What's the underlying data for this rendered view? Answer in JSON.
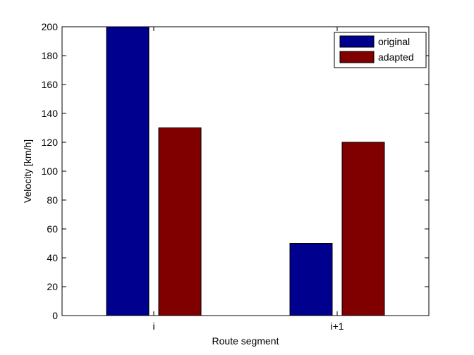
{
  "chart_data": {
    "type": "bar",
    "categories": [
      "i",
      "i+1"
    ],
    "series": [
      {
        "name": "original",
        "values": [
          200,
          50
        ],
        "color": "#00008f"
      },
      {
        "name": "adapted",
        "values": [
          130,
          120
        ],
        "color": "#800000"
      }
    ],
    "xlabel": "Route segment",
    "ylabel": "Velocity [km/h]",
    "ylim": [
      0,
      200
    ],
    "yticks": [
      0,
      20,
      40,
      60,
      80,
      100,
      120,
      140,
      160,
      180,
      200
    ],
    "grid": false,
    "legend_position": "top-right"
  }
}
